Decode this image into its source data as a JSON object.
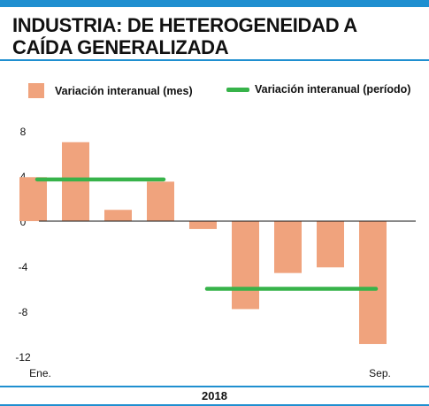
{
  "header": {
    "title_line1": "INDUSTRIA: DE HETEROGENEIDAD A",
    "title_line2": "CAÍDA GENERALIZADA"
  },
  "legend": {
    "bar_label": "Variación interanual (mes)",
    "line_label": "Variación interanual (período)"
  },
  "footer": {
    "year": "2018"
  },
  "colors": {
    "accent": "#1f8fd0",
    "bar": "#f0a37d",
    "line": "#37b34a"
  },
  "chart_data": {
    "type": "bar",
    "categories": [
      "Ene.",
      "",
      "",
      "",
      "",
      "",
      "",
      "",
      "Sep."
    ],
    "series": [
      {
        "values": [
          3.9,
          7.0,
          1.0,
          3.5,
          -0.7,
          -7.8,
          -4.6,
          -4.1,
          -10.9
        ]
      }
    ],
    "period_lines": [
      {
        "from_index": 0,
        "to_index": 3,
        "value": 3.7
      },
      {
        "from_index": 4,
        "to_index": 8,
        "value": -6.0
      }
    ],
    "yticks": [
      8,
      4,
      0,
      -4,
      -8,
      -12
    ],
    "ylim": [
      -12,
      8
    ],
    "grid": false
  }
}
